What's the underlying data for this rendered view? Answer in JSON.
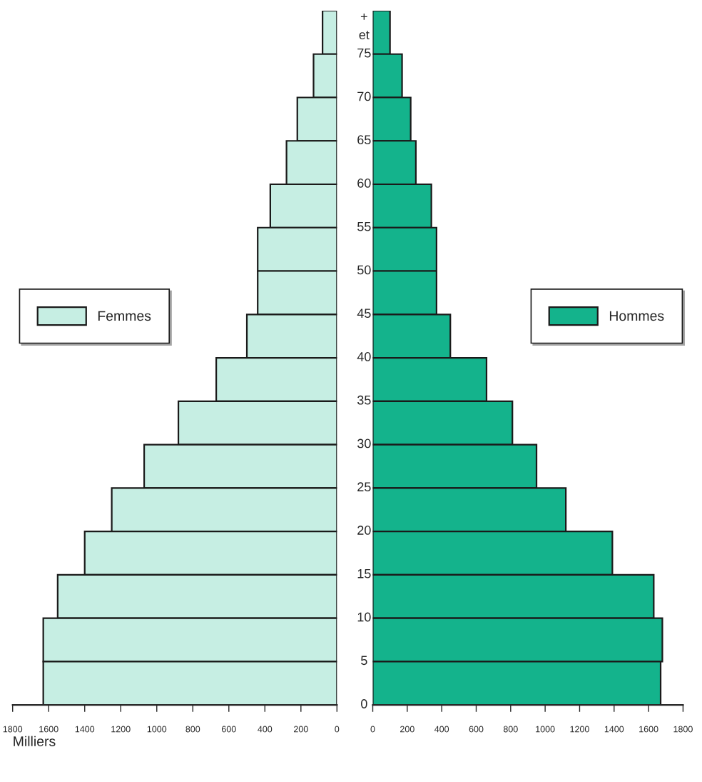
{
  "chart_data": [
    {
      "type": "bar",
      "orientation": "horizontal",
      "categories": [
        "75 et +",
        "70",
        "65",
        "60",
        "55",
        "50",
        "45",
        "40",
        "35",
        "30",
        "25",
        "20",
        "15",
        "10",
        "5",
        "0"
      ],
      "series": [
        {
          "name": "Femmes",
          "color": "#c6eee3",
          "values": [
            80,
            130,
            220,
            280,
            370,
            440,
            440,
            500,
            670,
            880,
            1070,
            1250,
            1400,
            1550,
            1630,
            1630
          ]
        }
      ],
      "xlim": [
        1800,
        0
      ],
      "xticks": [
        1800,
        1600,
        1400,
        1200,
        1000,
        800,
        600,
        400,
        200,
        0
      ],
      "xlabel": "Milliers",
      "legend": "center left",
      "tick_labels": "x",
      "grid": false
    },
    {
      "type": "bar",
      "orientation": "horizontal",
      "categories": [
        "75 et +",
        "70",
        "65",
        "60",
        "55",
        "50",
        "45",
        "40",
        "35",
        "30",
        "25",
        "20",
        "15",
        "10",
        "5",
        "0"
      ],
      "series": [
        {
          "name": "Hommes",
          "color": "#14b38c",
          "values": [
            100,
            170,
            220,
            250,
            340,
            370,
            370,
            450,
            660,
            810,
            950,
            1120,
            1390,
            1630,
            1680,
            1670
          ]
        }
      ],
      "xlim": [
        0,
        1800
      ],
      "xticks": [
        0,
        200,
        400,
        600,
        800,
        1000,
        1200,
        1400,
        1600,
        1800
      ],
      "legend": "center right",
      "grid": false
    }
  ]
}
